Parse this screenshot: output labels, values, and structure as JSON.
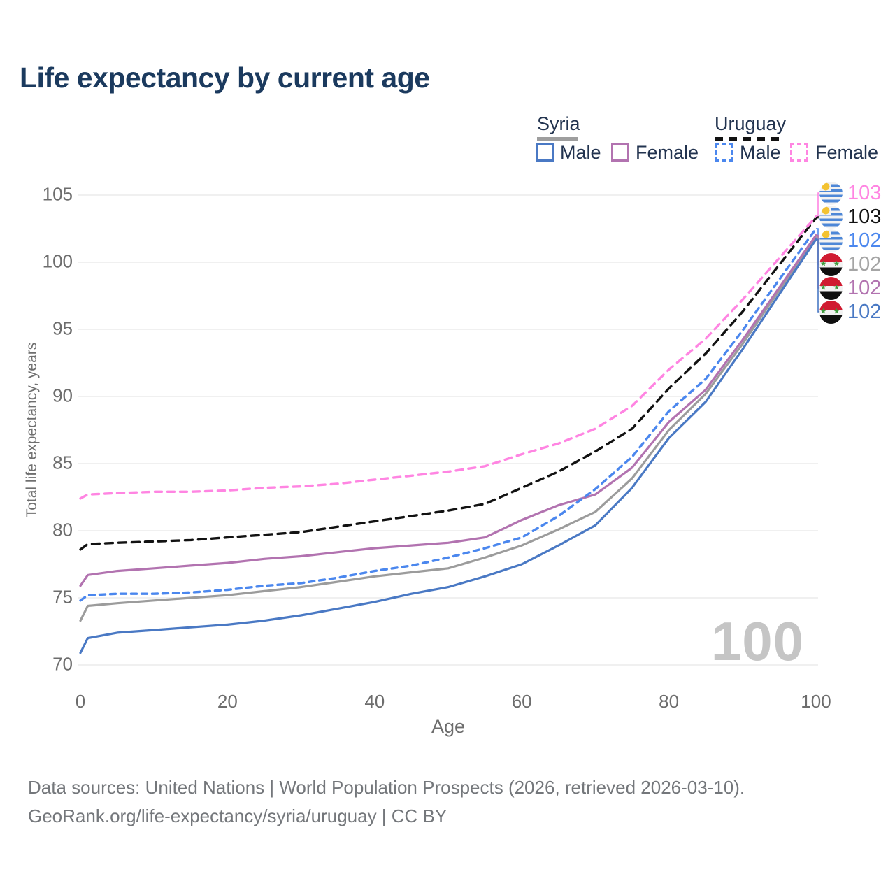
{
  "title": "Life expectancy by current age",
  "legend": {
    "groups": [
      {
        "label": "Syria",
        "line_style": "solid",
        "items": [
          {
            "label": "Male"
          },
          {
            "label": "Female"
          }
        ]
      },
      {
        "label": "Uruguay",
        "line_style": "dashed",
        "items": [
          {
            "label": "Male"
          },
          {
            "label": "Female"
          }
        ]
      }
    ]
  },
  "chart_data": {
    "type": "line",
    "title": "Life expectancy by current age",
    "xlabel": "Age",
    "ylabel": "Total life expectancy, years",
    "xlim": [
      0,
      100
    ],
    "ylim": [
      70,
      105
    ],
    "xticks": [
      0,
      20,
      40,
      60,
      80,
      100
    ],
    "yticks": [
      70,
      75,
      80,
      85,
      90,
      95,
      100,
      105
    ],
    "grid": "horizontal",
    "legend_position": "top-right",
    "x": [
      0,
      1,
      5,
      10,
      15,
      20,
      25,
      30,
      35,
      40,
      45,
      50,
      55,
      60,
      65,
      70,
      75,
      80,
      85,
      90,
      95,
      100
    ],
    "series": [
      {
        "name": "Syria Total",
        "country": "Syria",
        "sex": "Total",
        "color": "#9c9c9c",
        "dash": "solid",
        "values": [
          73.3,
          74.4,
          74.6,
          74.8,
          75.0,
          75.2,
          75.5,
          75.8,
          76.2,
          76.6,
          76.9,
          77.2,
          78.0,
          78.9,
          80.1,
          81.4,
          83.9,
          87.5,
          90.2,
          93.9,
          97.9,
          101.9
        ]
      },
      {
        "name": "Syria Female",
        "country": "Syria",
        "sex": "Female",
        "color": "#b273b0",
        "dash": "solid",
        "values": [
          75.9,
          76.7,
          77.0,
          77.2,
          77.4,
          77.6,
          77.9,
          78.1,
          78.4,
          78.7,
          78.9,
          79.1,
          79.5,
          80.8,
          81.9,
          82.7,
          84.7,
          88.1,
          90.5,
          94.2,
          98.1,
          102.0
        ]
      },
      {
        "name": "Syria Male",
        "country": "Syria",
        "sex": "Male",
        "color": "#4a79c4",
        "dash": "solid",
        "values": [
          70.9,
          72.0,
          72.4,
          72.6,
          72.8,
          73.0,
          73.3,
          73.7,
          74.2,
          74.7,
          75.3,
          75.8,
          76.6,
          77.5,
          78.9,
          80.4,
          83.2,
          86.9,
          89.6,
          93.5,
          97.6,
          101.7
        ]
      },
      {
        "name": "Uruguay Total",
        "country": "Uruguay",
        "sex": "Total",
        "color": "#121212",
        "dash": "11 8",
        "values": [
          78.6,
          79.0,
          79.1,
          79.2,
          79.3,
          79.5,
          79.7,
          79.9,
          80.3,
          80.7,
          81.1,
          81.5,
          82.0,
          83.2,
          84.4,
          85.9,
          87.6,
          90.6,
          93.2,
          96.3,
          99.8,
          103.3
        ]
      },
      {
        "name": "Uruguay Male",
        "country": "Uruguay",
        "sex": "Male",
        "color": "#4b87ee",
        "dash": "8 7",
        "values": [
          74.8,
          75.2,
          75.3,
          75.3,
          75.4,
          75.6,
          75.9,
          76.1,
          76.5,
          77.0,
          77.4,
          78.0,
          78.7,
          79.5,
          81.1,
          83.1,
          85.5,
          88.9,
          91.3,
          94.9,
          98.7,
          102.5
        ]
      },
      {
        "name": "Uruguay Female",
        "country": "Uruguay",
        "sex": "Female",
        "color": "#ff85e2",
        "dash": "10 8",
        "values": [
          82.4,
          82.7,
          82.8,
          82.9,
          82.9,
          83.0,
          83.2,
          83.3,
          83.5,
          83.8,
          84.1,
          84.4,
          84.8,
          85.7,
          86.5,
          87.6,
          89.3,
          92.0,
          94.3,
          97.2,
          100.3,
          103.4
        ]
      }
    ],
    "end_labels": [
      {
        "value": "103",
        "series": "Uruguay Female",
        "flag": "uruguay",
        "color": "#ff85e2"
      },
      {
        "value": "103",
        "series": "Uruguay Total",
        "flag": "uruguay",
        "color": "#121212"
      },
      {
        "value": "102",
        "series": "Uruguay Male",
        "flag": "uruguay",
        "color": "#4b87ee"
      },
      {
        "value": "102",
        "series": "Syria Total",
        "flag": "syria",
        "color": "#a5a5a5"
      },
      {
        "value": "102",
        "series": "Syria Female",
        "flag": "syria",
        "color": "#b273b0"
      },
      {
        "value": "102",
        "series": "Syria Male",
        "flag": "syria",
        "color": "#4a79c4"
      }
    ],
    "age_counter": "100"
  },
  "icons": {
    "syria_stars": "★ ★"
  },
  "footer": {
    "line1": "Data sources: United Nations | World Population Prospects (2026, retrieved 2026-03-10).",
    "line2": "GeoRank.org/life-expectancy/syria/uruguay | CC BY"
  }
}
